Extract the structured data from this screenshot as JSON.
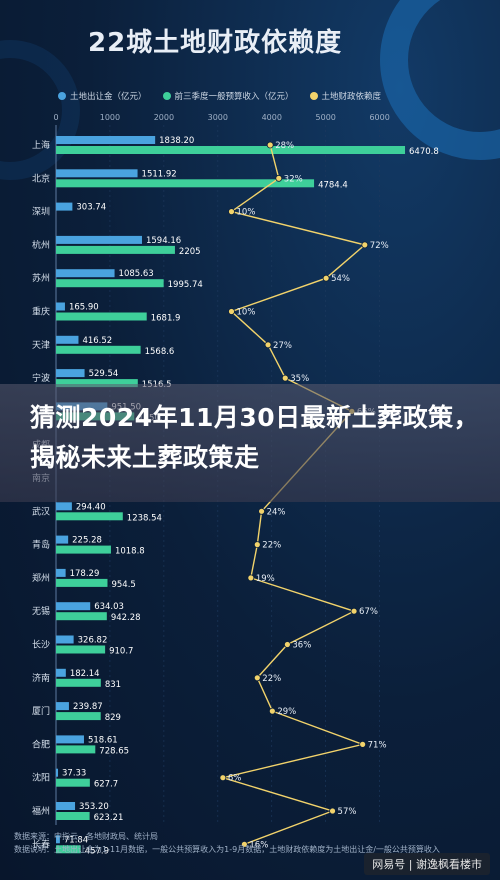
{
  "chart_data": {
    "type": "bar",
    "title": "22城土地财政依赖度",
    "series": [
      {
        "name": "土地出让金（亿元）",
        "color": "#4aa3df",
        "values": [
          1838.2,
          1511.92,
          303.74,
          1594.16,
          1085.63,
          165.9,
          416.52,
          529.54,
          951.5,
          0,
          0,
          294.4,
          225.28,
          178.29,
          634.03,
          326.82,
          182.14,
          239.87,
          518.61,
          37.33,
          353.2,
          71.84
        ]
      },
      {
        "name": "前三季度一般预算收入（亿元）",
        "color": "#3ecf9a",
        "values": [
          6470.8,
          4784.4,
          0,
          2205,
          1995.74,
          1681.9,
          1568.6,
          1516.5,
          1450.7,
          0,
          0,
          1238.54,
          1018.8,
          954.5,
          942.28,
          910.7,
          831,
          829,
          728.65,
          627.7,
          623.21,
          457.9
        ]
      },
      {
        "name": "土地财政依赖度",
        "color": "#f2d36b",
        "values": [
          28,
          32,
          10,
          72,
          54,
          10,
          27,
          35,
          66,
          0,
          0,
          24,
          22,
          19,
          67,
          36,
          22,
          29,
          71,
          6,
          57,
          16
        ]
      }
    ],
    "categories": [
      "上海",
      "北京",
      "深圳",
      "杭州",
      "苏州",
      "重庆",
      "天津",
      "宁波",
      "广州",
      "成都",
      "南京",
      "武汉",
      "青岛",
      "郑州",
      "无锡",
      "长沙",
      "济南",
      "厦门",
      "合肥",
      "沈阳",
      "福州",
      "长春"
    ],
    "bar_labels_a": [
      "1838.20",
      "1511.92",
      "303.74",
      "1594.16",
      "1085.63",
      "165.90",
      "416.52",
      "529.54",
      "951.50",
      "",
      "",
      "294.40",
      "225.28",
      "178.29",
      "634.03",
      "326.82",
      "182.14",
      "239.87",
      "518.61",
      "37.33",
      "353.20",
      "71.84"
    ],
    "bar_labels_b": [
      "6470.8",
      "4784.4",
      "",
      "2205",
      "1995.74",
      "1681.9",
      "1568.6",
      "1516.5",
      "1450.7",
      "",
      "",
      "1238.54",
      "1018.8",
      "954.5",
      "942.28",
      "910.7",
      "831",
      "829",
      "728.65",
      "627.7",
      "623.21",
      "457.9"
    ],
    "pct_labels": [
      "28%",
      "32%",
      "10%",
      "72%",
      "54%",
      "10%",
      "27%",
      "35%",
      "66%",
      "",
      "",
      "24%",
      "22%",
      "19%",
      "67%",
      "36%",
      "22%",
      "29%",
      "71%",
      "6%",
      "57%",
      "16%"
    ],
    "x_ticks": [
      "0",
      "1000",
      "2000",
      "3000",
      "4000",
      "5000",
      "6000"
    ],
    "xlim": [
      0,
      6600
    ],
    "line_range": [
      0,
      100
    ],
    "grid": true,
    "legend_position": "top"
  },
  "banner_text": "猜测2024年11月30日最新土葬政策，揭秘未来土葬政策走",
  "footer": {
    "source": "数据来源：中指云、各地财政局、统计局",
    "note": "数据说明：土地出让金为1-11月数据，一般公共预算收入为1-9月数据，土地财政依赖度为土地出让金/一般公共预算收入"
  },
  "watermark": "网易号 | 谢逸枫看楼市",
  "colors": {
    "background": "#0b1f3a",
    "bar_a": "#4aa3df",
    "bar_b": "#3ecf9a",
    "line": "#f2d36b"
  }
}
